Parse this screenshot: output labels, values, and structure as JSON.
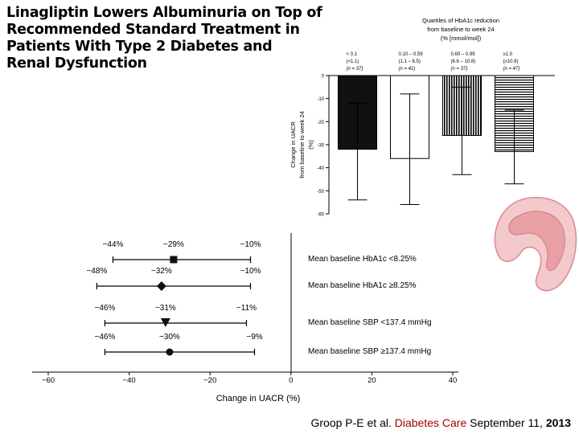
{
  "title_lines": [
    "Linagliptin Lowers Albuminuria on Top of",
    "Recommended Standard Treatment in",
    "Patients With Type 2 Diabetes and",
    "Renal Dysfunction"
  ],
  "citation": {
    "authors": "Groop P-E et al.",
    "journal": "Diabetes Care",
    "date": "September 11,",
    "year": "2013"
  },
  "chart_data": [
    {
      "type": "bar",
      "title_lines": [
        "Quartiles of HbA1c reduction",
        "from baseline to week 24",
        "(% [mmol/mol])"
      ],
      "ylabel_lines": [
        "Change in UACR",
        "from baseline to week 24",
        "(%)"
      ],
      "ylim": [
        -60,
        0
      ],
      "yticks": [
        "0",
        "-10",
        "-20",
        "-30",
        "-40",
        "-50",
        "-60"
      ],
      "categories": [
        {
          "range": "< 0.1",
          "mmol": "(<1.1)",
          "n": "(n = 37)"
        },
        {
          "range": "0.10 – 0.59",
          "mmol": "(1.1 – 6.5)",
          "n": "(n = 41)"
        },
        {
          "range": "0.60 – 0.99",
          "mmol": "(6.6 – 10.8)",
          "n": "(n = 37)"
        },
        {
          "range": "≥1.0",
          "mmol": "(≥10.9)",
          "n": "(n = 47)"
        }
      ],
      "values": [
        -32,
        -36,
        -26,
        -33
      ],
      "error_low": [
        -54,
        -56,
        -43,
        -47
      ],
      "error_high": [
        -12,
        -8,
        -5,
        -15
      ],
      "fills": [
        "solid",
        "white",
        "vertical-stripes",
        "horizontal-stripes"
      ]
    },
    {
      "type": "forest",
      "xlabel": "Change in UACR (%)",
      "xlim": [
        -60,
        40
      ],
      "xticks": [
        "−60",
        "−40",
        "−20",
        "0",
        "20",
        "40"
      ],
      "rows": [
        {
          "label": "Mean baseline HbA1c <8.25%",
          "point": -29,
          "low": -44,
          "high": -10,
          "marker": "square",
          "point_label": "−29%",
          "low_label": "−44%",
          "high_label": "−10%"
        },
        {
          "label": "Mean baseline HbA1c ≥8.25%",
          "point": -32,
          "low": -48,
          "high": -10,
          "marker": "diamond",
          "point_label": "−32%",
          "low_label": "−48%",
          "high_label": "−10%"
        },
        {
          "label": "Mean baseline SBP <137.4 mmHg",
          "point": -31,
          "low": -46,
          "high": -11,
          "marker": "triangle-down",
          "point_label": "−31%",
          "low_label": "−46%",
          "high_label": "−11%"
        },
        {
          "label": "Mean baseline SBP ≥137.4 mmHg",
          "point": -30,
          "low": -46,
          "high": -9,
          "marker": "circle",
          "point_label": "−30%",
          "low_label": "−46%",
          "high_label": "−9%"
        }
      ]
    }
  ],
  "icons": {
    "kidney": "kidney-illustration"
  },
  "colors": {
    "citation_highlight": "#a00000",
    "kidney": "#e8a0a4"
  }
}
